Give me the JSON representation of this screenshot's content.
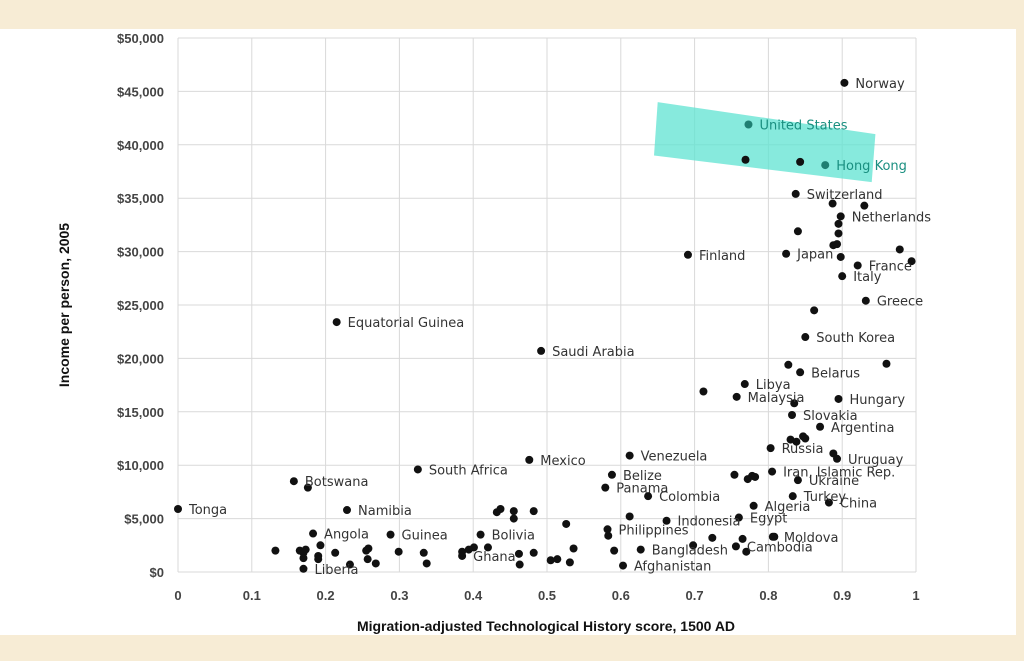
{
  "chart_data": {
    "type": "scatter",
    "title": "",
    "xlabel": "Migration-adjusted Technological History score, 1500 AD",
    "ylabel": "Income per person, 2005",
    "xlim": [
      0,
      1
    ],
    "ylim": [
      0,
      50000
    ],
    "xticks": [
      "0",
      "0.1",
      "0.2",
      "0.3",
      "0.4",
      "0.5",
      "0.6",
      "0.7",
      "0.8",
      "0.9",
      "1"
    ],
    "yticks": [
      "$0",
      "$5,000",
      "$10,000",
      "$15,000",
      "$20,000",
      "$25,000",
      "$30,000",
      "$35,000",
      "$40,000",
      "$45,000",
      "$50,000"
    ],
    "grid": true,
    "marker_color": "#111111",
    "highlight_color": "#5fe3d2",
    "highlight": {
      "x": [
        0.65,
        0.945,
        0.94,
        0.645
      ],
      "y": [
        44000,
        41000,
        36500,
        39000
      ]
    },
    "labeled_points": [
      {
        "label": "Norway",
        "x": 0.903,
        "y": 45800
      },
      {
        "label": "United States",
        "x": 0.773,
        "y": 41900,
        "highlighted": true
      },
      {
        "label": "Hong Kong",
        "x": 0.877,
        "y": 38100,
        "highlighted": true
      },
      {
        "label": "Switzerland",
        "x": 0.837,
        "y": 35400
      },
      {
        "label": "Netherlands",
        "x": 0.898,
        "y": 33300
      },
      {
        "label": "Finland",
        "x": 0.691,
        "y": 29700
      },
      {
        "label": "Japan",
        "x": 0.824,
        "y": 29800
      },
      {
        "label": "France",
        "x": 0.921,
        "y": 28700
      },
      {
        "label": "Italy",
        "x": 0.9,
        "y": 27700
      },
      {
        "label": "Greece",
        "x": 0.932,
        "y": 25400
      },
      {
        "label": "Equatorial Guinea",
        "x": 0.215,
        "y": 23400
      },
      {
        "label": "South Korea",
        "x": 0.85,
        "y": 22000
      },
      {
        "label": "Saudi Arabia",
        "x": 0.492,
        "y": 20700
      },
      {
        "label": "Belarus",
        "x": 0.843,
        "y": 18700
      },
      {
        "label": "Libya",
        "x": 0.768,
        "y": 17600
      },
      {
        "label": "Malaysia",
        "x": 0.757,
        "y": 16400
      },
      {
        "label": "Hungary",
        "x": 0.895,
        "y": 16200
      },
      {
        "label": "Slovakia",
        "x": 0.832,
        "y": 14700
      },
      {
        "label": "Argentina",
        "x": 0.87,
        "y": 13600
      },
      {
        "label": "Russia",
        "x": 0.803,
        "y": 11600
      },
      {
        "label": "Uruguay",
        "x": 0.893,
        "y": 10600
      },
      {
        "label": "Venezuela",
        "x": 0.612,
        "y": 10900
      },
      {
        "label": "Mexico",
        "x": 0.476,
        "y": 10500
      },
      {
        "label": "South Africa",
        "x": 0.325,
        "y": 9600
      },
      {
        "label": "Iran, Islamic Rep.",
        "x": 0.805,
        "y": 9400
      },
      {
        "label": "Belize",
        "x": 0.588,
        "y": 9100
      },
      {
        "label": "Ukraine",
        "x": 0.84,
        "y": 8600
      },
      {
        "label": "Botswana",
        "x": 0.157,
        "y": 8500
      },
      {
        "label": "Panama",
        "x": 0.579,
        "y": 7900
      },
      {
        "label": "Colombia",
        "x": 0.637,
        "y": 7100
      },
      {
        "label": "Turkey",
        "x": 0.833,
        "y": 7100
      },
      {
        "label": "China",
        "x": 0.882,
        "y": 6500
      },
      {
        "label": "Algeria",
        "x": 0.78,
        "y": 6200
      },
      {
        "label": "Tonga",
        "x": 0.0,
        "y": 5900
      },
      {
        "label": "Namibia",
        "x": 0.229,
        "y": 5800
      },
      {
        "label": "Egypt",
        "x": 0.76,
        "y": 5100
      },
      {
        "label": "Indonesia",
        "x": 0.662,
        "y": 4800
      },
      {
        "label": "Philippines",
        "x": 0.582,
        "y": 4000
      },
      {
        "label": "Angola",
        "x": 0.183,
        "y": 3600
      },
      {
        "label": "Guinea",
        "x": 0.288,
        "y": 3500
      },
      {
        "label": "Bolivia",
        "x": 0.41,
        "y": 3500
      },
      {
        "label": "Moldova",
        "x": 0.806,
        "y": 3300
      },
      {
        "label": "Cambodia",
        "x": 0.756,
        "y": 2400
      },
      {
        "label": "Bangladesh",
        "x": 0.627,
        "y": 2100
      },
      {
        "label": "Ghana",
        "x": 0.385,
        "y": 1500
      },
      {
        "label": "Afghanistan",
        "x": 0.603,
        "y": 600
      },
      {
        "label": "Liberia",
        "x": 0.17,
        "y": 300
      }
    ],
    "unlabeled_points": {
      "x": [
        0.769,
        0.843,
        0.84,
        0.887,
        0.93,
        0.895,
        0.888,
        0.898,
        0.893,
        0.978,
        0.994,
        0.895,
        0.862,
        0.827,
        0.96,
        0.712,
        0.835,
        0.83,
        0.838,
        0.85,
        0.847,
        0.888,
        0.778,
        0.754,
        0.772,
        0.782,
        0.176,
        0.612,
        0.526,
        0.455,
        0.482,
        0.432,
        0.437,
        0.455,
        0.401,
        0.394,
        0.42,
        0.132,
        0.165,
        0.17,
        0.173,
        0.19,
        0.193,
        0.17,
        0.213,
        0.258,
        0.255,
        0.299,
        0.333,
        0.385,
        0.462,
        0.482,
        0.536,
        0.505,
        0.514,
        0.531,
        0.463,
        0.257,
        0.268,
        0.233,
        0.19,
        0.337,
        0.583,
        0.698,
        0.724,
        0.765,
        0.808,
        0.77,
        0.591
      ],
      "y": [
        38600,
        38400,
        31900,
        34500,
        34300,
        32600,
        30600,
        29500,
        30700,
        30200,
        29100,
        31700,
        24500,
        19400,
        19500,
        16900,
        15800,
        12400,
        12200,
        12500,
        12700,
        11100,
        9000,
        9100,
        8700,
        8900,
        7900,
        5200,
        4500,
        5700,
        5700,
        5600,
        5900,
        5000,
        2300,
        2100,
        2300,
        2000,
        2000,
        1800,
        2100,
        1500,
        2500,
        1300,
        1800,
        2200,
        2000,
        1900,
        1800,
        1900,
        1700,
        1800,
        2200,
        1100,
        1200,
        900,
        700,
        1200,
        800,
        700,
        1200,
        800,
        3400,
        2500,
        3200,
        3100,
        3300,
        1900,
        2000
      ]
    }
  }
}
